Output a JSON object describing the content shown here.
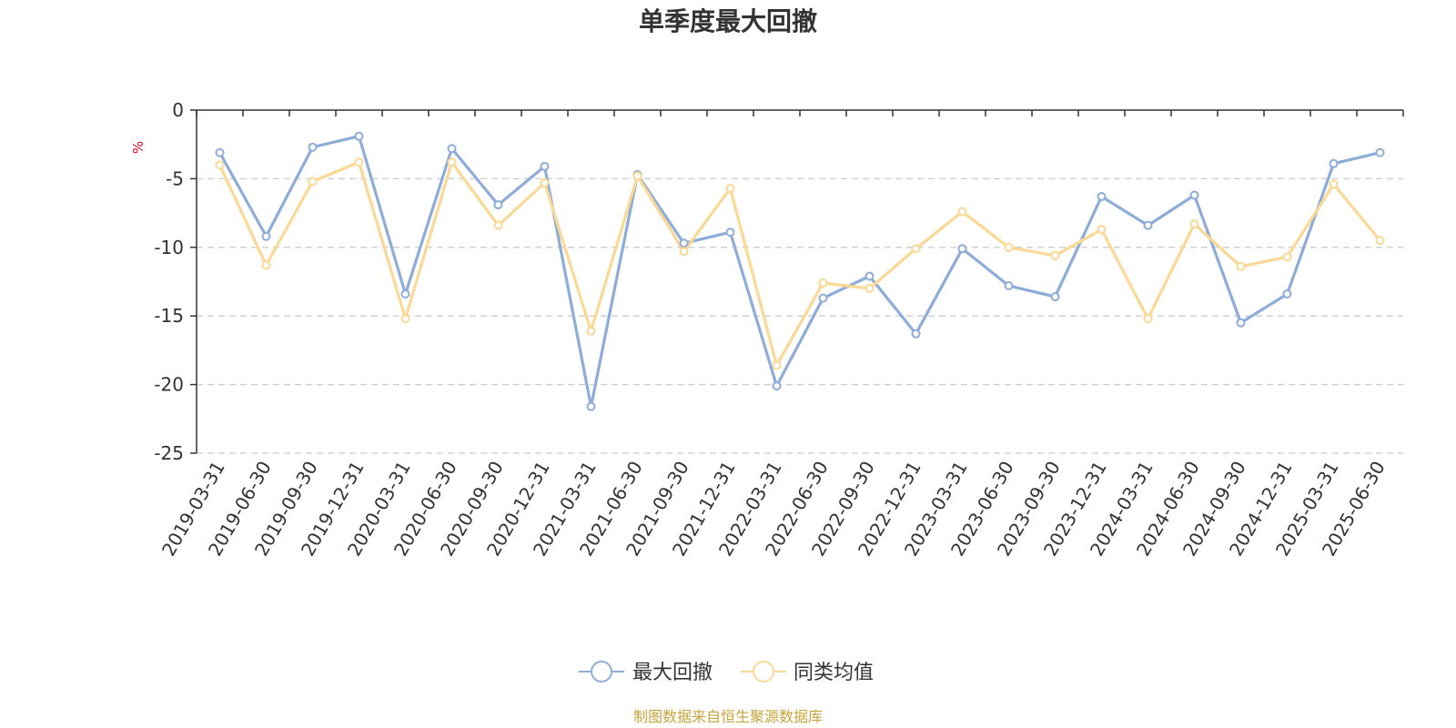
{
  "chart_data": {
    "type": "line",
    "title": "单季度最大回撤",
    "ylabel": "%",
    "xlabel": "",
    "ylim": [
      -25,
      0
    ],
    "yticks": [
      0,
      -5,
      -10,
      -15,
      -20,
      -25
    ],
    "grid": true,
    "legend_position": "bottom",
    "categories": [
      "2019-03-31",
      "2019-06-30",
      "2019-09-30",
      "2019-12-31",
      "2020-03-31",
      "2020-06-30",
      "2020-09-30",
      "2020-12-31",
      "2021-03-31",
      "2021-06-30",
      "2021-09-30",
      "2021-12-31",
      "2022-03-31",
      "2022-06-30",
      "2022-09-30",
      "2022-12-31",
      "2023-03-31",
      "2023-06-30",
      "2023-09-30",
      "2023-12-31",
      "2024-03-31",
      "2024-06-30",
      "2024-09-30",
      "2024-12-31",
      "2025-03-31",
      "2025-06-30"
    ],
    "series": [
      {
        "name": "最大回撤",
        "color": "#8eacd8",
        "values": [
          -3.1,
          -9.2,
          -2.7,
          -1.9,
          -13.4,
          -2.8,
          -6.9,
          -4.1,
          -21.6,
          -4.7,
          -9.7,
          -8.9,
          -20.1,
          -13.7,
          -12.1,
          -16.3,
          -10.1,
          -12.8,
          -13.6,
          -6.3,
          -8.4,
          -6.2,
          -15.5,
          -13.4,
          -3.9,
          -3.1
        ]
      },
      {
        "name": "同类均值",
        "color": "#fad895",
        "values": [
          -4.0,
          -11.3,
          -5.2,
          -3.8,
          -15.2,
          -3.8,
          -8.4,
          -5.3,
          -16.1,
          -4.8,
          -10.3,
          -5.7,
          -18.6,
          -12.6,
          -13.0,
          -10.1,
          -7.4,
          -10.0,
          -10.6,
          -8.7,
          -15.2,
          -8.3,
          -11.4,
          -10.7,
          -5.4,
          -9.5
        ]
      }
    ]
  },
  "footer": {
    "source_text": "制图数据来自恒生聚源数据库"
  }
}
